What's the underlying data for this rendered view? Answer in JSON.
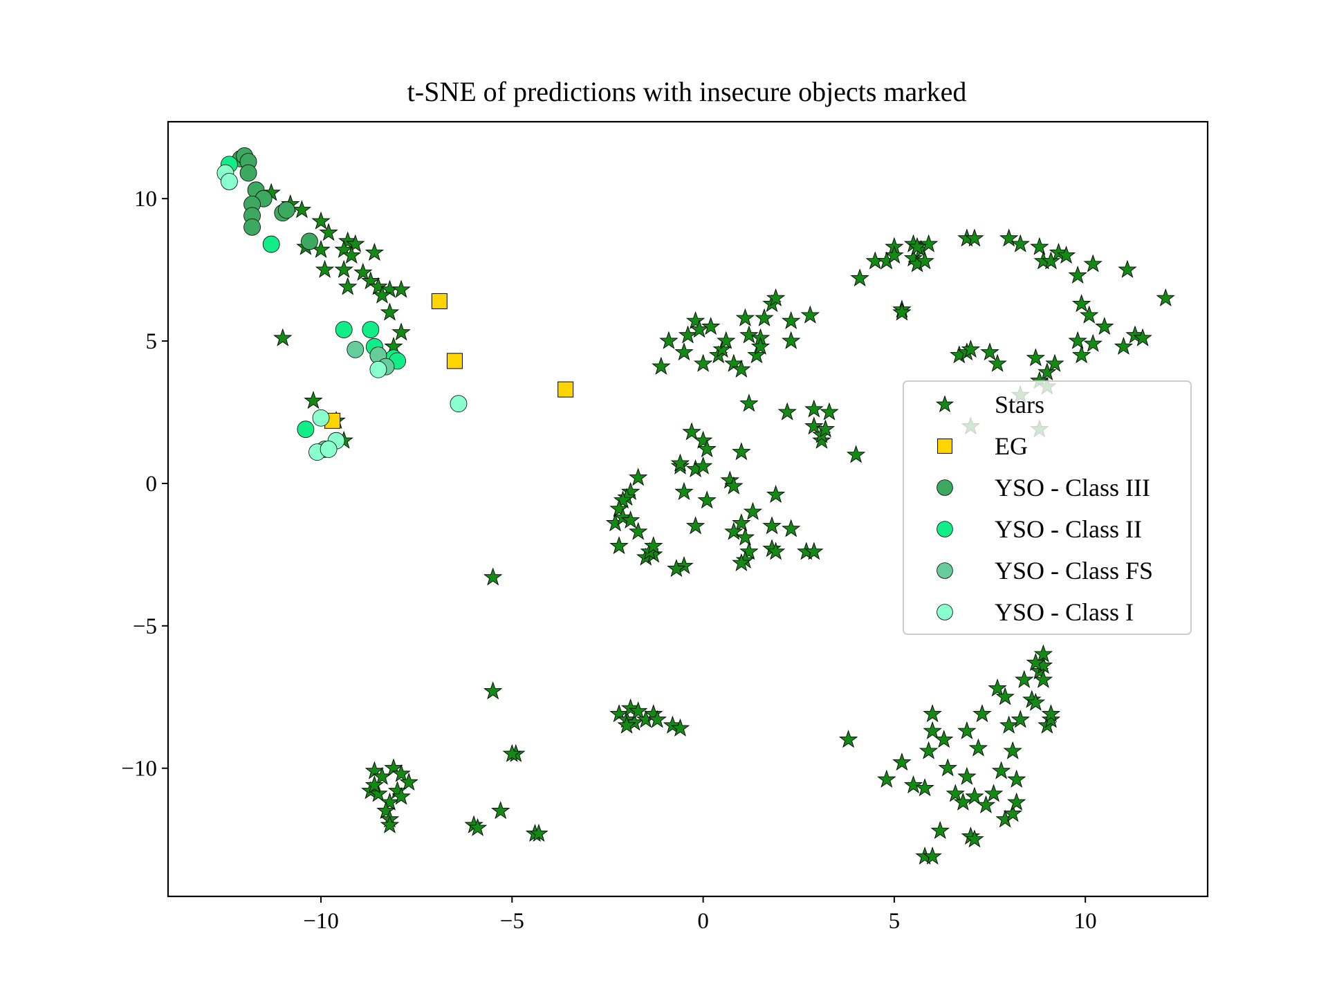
{
  "chart_data": {
    "type": "scatter",
    "title": "t-SNE of predictions with insecure objects marked",
    "xlabel": "",
    "ylabel": "",
    "xlim": [
      -14,
      13.2
    ],
    "ylim": [
      -14.5,
      12.7
    ],
    "xticks": [
      {
        "value": -10,
        "label": "−10"
      },
      {
        "value": -5,
        "label": "−5"
      },
      {
        "value": 0,
        "label": "0"
      },
      {
        "value": 5,
        "label": "5"
      },
      {
        "value": 10,
        "label": "10"
      }
    ],
    "yticks": [
      {
        "value": 10,
        "label": "10"
      },
      {
        "value": 5,
        "label": "5"
      },
      {
        "value": 0,
        "label": "0"
      },
      {
        "value": -5,
        "label": "−5"
      },
      {
        "value": -10,
        "label": "−10"
      }
    ],
    "grid": false,
    "legend": {
      "position": "center-right"
    },
    "series": [
      {
        "name": "Stars",
        "marker": "star",
        "color": "#138a13",
        "points": [
          [
            -11.3,
            10.2
          ],
          [
            -10.8,
            9.8
          ],
          [
            -10.5,
            9.6
          ],
          [
            -10.0,
            9.2
          ],
          [
            -9.8,
            8.8
          ],
          [
            -9.3,
            8.5
          ],
          [
            -9.1,
            8.4
          ],
          [
            -9.4,
            8.2
          ],
          [
            -9.2,
            8.0
          ],
          [
            -8.6,
            8.1
          ],
          [
            -10.0,
            8.2
          ],
          [
            -10.4,
            8.3
          ],
          [
            -9.9,
            7.5
          ],
          [
            -9.4,
            7.5
          ],
          [
            -8.9,
            7.4
          ],
          [
            -8.7,
            7.1
          ],
          [
            -8.5,
            6.9
          ],
          [
            -8.2,
            6.8
          ],
          [
            -7.9,
            6.8
          ],
          [
            -8.4,
            6.6
          ],
          [
            -9.3,
            6.9
          ],
          [
            -8.2,
            6.0
          ],
          [
            -7.9,
            5.3
          ],
          [
            -11.0,
            5.1
          ],
          [
            -8.1,
            4.8
          ],
          [
            -10.2,
            2.9
          ],
          [
            -9.6,
            2.2
          ],
          [
            -9.4,
            1.5
          ],
          [
            -5.5,
            -3.3
          ],
          [
            -5.5,
            -7.3
          ],
          [
            -4.9,
            -9.5
          ],
          [
            -5.0,
            -9.5
          ],
          [
            -5.3,
            -11.5
          ],
          [
            -6.0,
            -12.0
          ],
          [
            -5.9,
            -12.1
          ],
          [
            -4.4,
            -12.3
          ],
          [
            -4.3,
            -12.3
          ],
          [
            -8.6,
            -10.1
          ],
          [
            -8.4,
            -10.3
          ],
          [
            -8.1,
            -10.0
          ],
          [
            -7.9,
            -10.2
          ],
          [
            -7.7,
            -10.5
          ],
          [
            -8.7,
            -10.8
          ],
          [
            -8.5,
            -10.9
          ],
          [
            -8.2,
            -11.2
          ],
          [
            -8.0,
            -10.8
          ],
          [
            -7.9,
            -11.0
          ],
          [
            -8.3,
            -11.5
          ],
          [
            -8.2,
            -11.8
          ],
          [
            -8.2,
            -12.0
          ],
          [
            -8.6,
            -10.6
          ],
          [
            -2.2,
            -8.1
          ],
          [
            -2.0,
            -8.3
          ],
          [
            -1.9,
            -7.9
          ],
          [
            -1.8,
            -8.4
          ],
          [
            -1.7,
            -8.0
          ],
          [
            -1.5,
            -8.3
          ],
          [
            -1.3,
            -8.1
          ],
          [
            -1.2,
            -8.3
          ],
          [
            -2.0,
            -8.5
          ],
          [
            -0.8,
            -8.5
          ],
          [
            -0.6,
            -8.6
          ],
          [
            -1.1,
            4.1
          ],
          [
            -0.9,
            5.0
          ],
          [
            -0.5,
            4.6
          ],
          [
            -0.4,
            5.2
          ],
          [
            -0.2,
            5.7
          ],
          [
            -0.1,
            5.4
          ],
          [
            0.2,
            5.5
          ],
          [
            0.4,
            4.5
          ],
          [
            0.5,
            4.7
          ],
          [
            0.6,
            5.0
          ],
          [
            0.8,
            4.2
          ],
          [
            1.0,
            4.0
          ],
          [
            1.1,
            5.8
          ],
          [
            1.2,
            5.2
          ],
          [
            1.4,
            4.5
          ],
          [
            1.5,
            5.1
          ],
          [
            1.5,
            4.8
          ],
          [
            1.6,
            5.8
          ],
          [
            1.8,
            6.3
          ],
          [
            1.9,
            6.5
          ],
          [
            2.3,
            5.7
          ],
          [
            2.3,
            5.0
          ],
          [
            2.8,
            5.9
          ],
          [
            0.0,
            4.2
          ],
          [
            -0.6,
            0.6
          ],
          [
            -0.3,
            1.8
          ],
          [
            0.0,
            1.5
          ],
          [
            0.1,
            1.2
          ],
          [
            -0.2,
            0.5
          ],
          [
            0.0,
            0.6
          ],
          [
            -0.6,
            0.7
          ],
          [
            -0.5,
            -0.3
          ],
          [
            -1.7,
            0.2
          ],
          [
            -1.9,
            -0.3
          ],
          [
            -2.0,
            -0.5
          ],
          [
            -2.1,
            -0.6
          ],
          [
            -2.2,
            -0.9
          ],
          [
            -2.3,
            -1.4
          ],
          [
            -2.1,
            -1.2
          ],
          [
            -1.9,
            -1.3
          ],
          [
            -1.7,
            -1.7
          ],
          [
            -1.5,
            -2.6
          ],
          [
            -1.3,
            -2.5
          ],
          [
            -1.4,
            -2.4
          ],
          [
            -1.3,
            -2.2
          ],
          [
            -2.2,
            -2.2
          ],
          [
            -0.2,
            -1.5
          ],
          [
            0.1,
            -0.6
          ],
          [
            0.7,
            0.1
          ],
          [
            0.8,
            -0.1
          ],
          [
            1.0,
            -1.4
          ],
          [
            0.8,
            -1.7
          ],
          [
            1.1,
            -1.9
          ],
          [
            1.3,
            -1.0
          ],
          [
            1.2,
            -2.4
          ],
          [
            1.1,
            -2.7
          ],
          [
            1.0,
            -2.8
          ],
          [
            1.8,
            -2.3
          ],
          [
            1.9,
            -2.4
          ],
          [
            1.8,
            -1.5
          ],
          [
            1.9,
            -0.4
          ],
          [
            2.3,
            -1.6
          ],
          [
            2.7,
            -2.4
          ],
          [
            2.9,
            -2.4
          ],
          [
            -0.5,
            -2.9
          ],
          [
            -0.7,
            -3.0
          ],
          [
            2.2,
            2.5
          ],
          [
            2.9,
            2.6
          ],
          [
            2.9,
            2.0
          ],
          [
            3.1,
            1.5
          ],
          [
            3.1,
            1.7
          ],
          [
            3.3,
            2.5
          ],
          [
            3.2,
            1.9
          ],
          [
            4.0,
            1.0
          ],
          [
            1.0,
            1.1
          ],
          [
            1.2,
            2.8
          ],
          [
            5.0,
            8.3
          ],
          [
            5.2,
            6.1
          ],
          [
            5.2,
            6.0
          ],
          [
            4.1,
            7.2
          ],
          [
            4.5,
            7.8
          ],
          [
            4.8,
            7.8
          ],
          [
            5.0,
            8.0
          ],
          [
            5.5,
            8.4
          ],
          [
            5.5,
            7.9
          ],
          [
            5.6,
            7.7
          ],
          [
            5.7,
            8.2
          ],
          [
            5.8,
            7.8
          ],
          [
            5.9,
            8.4
          ],
          [
            5.6,
            8.3
          ],
          [
            6.9,
            8.6
          ],
          [
            7.1,
            8.6
          ],
          [
            8.0,
            8.6
          ],
          [
            8.3,
            8.4
          ],
          [
            8.8,
            8.3
          ],
          [
            8.9,
            7.8
          ],
          [
            9.1,
            7.8
          ],
          [
            9.3,
            8.1
          ],
          [
            9.5,
            8.0
          ],
          [
            9.8,
            7.3
          ],
          [
            10.2,
            7.7
          ],
          [
            11.1,
            7.5
          ],
          [
            12.1,
            6.5
          ],
          [
            9.9,
            6.3
          ],
          [
            10.1,
            5.9
          ],
          [
            10.5,
            5.5
          ],
          [
            9.8,
            5.0
          ],
          [
            10.2,
            4.9
          ],
          [
            9.9,
            4.5
          ],
          [
            11.0,
            4.8
          ],
          [
            11.3,
            5.2
          ],
          [
            11.5,
            5.1
          ],
          [
            6.7,
            4.5
          ],
          [
            6.9,
            4.6
          ],
          [
            7.0,
            4.7
          ],
          [
            7.5,
            4.6
          ],
          [
            7.7,
            4.2
          ],
          [
            8.7,
            4.4
          ],
          [
            9.0,
            3.9
          ],
          [
            9.2,
            4.2
          ],
          [
            8.8,
            3.6
          ],
          [
            9.0,
            3.4
          ],
          [
            8.3,
            3.1
          ],
          [
            3.8,
            -9.0
          ],
          [
            4.8,
            -10.4
          ],
          [
            5.2,
            -9.8
          ],
          [
            5.5,
            -10.6
          ],
          [
            5.8,
            -10.7
          ],
          [
            5.9,
            -9.4
          ],
          [
            6.0,
            -8.7
          ],
          [
            6.0,
            -8.1
          ],
          [
            6.2,
            -12.2
          ],
          [
            6.3,
            -9.0
          ],
          [
            6.4,
            -10.0
          ],
          [
            6.6,
            -10.9
          ],
          [
            6.8,
            -11.2
          ],
          [
            6.9,
            -8.7
          ],
          [
            6.9,
            -10.3
          ],
          [
            7.0,
            -12.4
          ],
          [
            7.1,
            -12.5
          ],
          [
            7.1,
            -11.0
          ],
          [
            7.2,
            -9.3
          ],
          [
            7.3,
            -8.1
          ],
          [
            7.4,
            -11.3
          ],
          [
            7.6,
            -10.9
          ],
          [
            7.7,
            -7.2
          ],
          [
            7.9,
            -7.5
          ],
          [
            8.0,
            -8.5
          ],
          [
            7.8,
            -10.1
          ],
          [
            7.9,
            -11.8
          ],
          [
            8.1,
            -9.4
          ],
          [
            8.1,
            -11.6
          ],
          [
            8.2,
            -11.2
          ],
          [
            8.2,
            -10.4
          ],
          [
            8.3,
            -8.3
          ],
          [
            8.4,
            -6.9
          ],
          [
            8.6,
            -7.6
          ],
          [
            8.7,
            -7.7
          ],
          [
            8.8,
            -6.6
          ],
          [
            8.9,
            -6.4
          ],
          [
            8.9,
            -6.0
          ],
          [
            8.7,
            -6.3
          ],
          [
            9.0,
            -8.5
          ],
          [
            9.1,
            -8.3
          ],
          [
            9.1,
            -8.1
          ],
          [
            8.9,
            -6.9
          ],
          [
            8.8,
            1.9
          ],
          [
            5.8,
            -13.1
          ],
          [
            6.0,
            -13.1
          ],
          [
            7.0,
            2.0
          ]
        ]
      },
      {
        "name": "EG",
        "marker": "square",
        "color": "#ffd500",
        "points": [
          [
            -6.9,
            6.4
          ],
          [
            -6.5,
            4.3
          ],
          [
            -3.6,
            3.3
          ],
          [
            -9.7,
            2.2
          ]
        ]
      },
      {
        "name": "YSO - Class III",
        "marker": "circle",
        "color": "#3ca860",
        "points": [
          [
            -12.1,
            11.4
          ],
          [
            -12.0,
            11.5
          ],
          [
            -11.9,
            11.3
          ],
          [
            -11.9,
            10.9
          ],
          [
            -11.7,
            10.3
          ],
          [
            -11.5,
            10.0
          ],
          [
            -11.8,
            9.8
          ],
          [
            -11.8,
            9.4
          ],
          [
            -11.8,
            9.0
          ],
          [
            -11.0,
            9.5
          ],
          [
            -10.9,
            9.6
          ],
          [
            -10.3,
            8.5
          ]
        ]
      },
      {
        "name": "YSO - Class II",
        "marker": "circle",
        "color": "#11ee88",
        "points": [
          [
            -12.4,
            11.2
          ],
          [
            -11.3,
            8.4
          ],
          [
            -9.4,
            5.4
          ],
          [
            -8.7,
            5.4
          ],
          [
            -8.6,
            4.8
          ],
          [
            -8.5,
            4.5
          ],
          [
            -8.1,
            4.4
          ],
          [
            -8.0,
            4.3
          ],
          [
            -10.4,
            1.9
          ]
        ]
      },
      {
        "name": "YSO - Class FS",
        "marker": "circle",
        "color": "#66cc99",
        "points": [
          [
            -9.1,
            4.7
          ],
          [
            -8.5,
            4.5
          ],
          [
            -8.3,
            4.1
          ],
          [
            -9.9,
            1.2
          ]
        ]
      },
      {
        "name": "YSO - Class I",
        "marker": "circle",
        "color": "#88ffcc",
        "points": [
          [
            -12.5,
            10.9
          ],
          [
            -12.4,
            10.6
          ],
          [
            -8.5,
            4.0
          ],
          [
            -6.4,
            2.8
          ],
          [
            -10.0,
            2.3
          ],
          [
            -9.6,
            1.5
          ],
          [
            -10.1,
            1.1
          ],
          [
            -9.8,
            1.2
          ]
        ]
      }
    ]
  }
}
